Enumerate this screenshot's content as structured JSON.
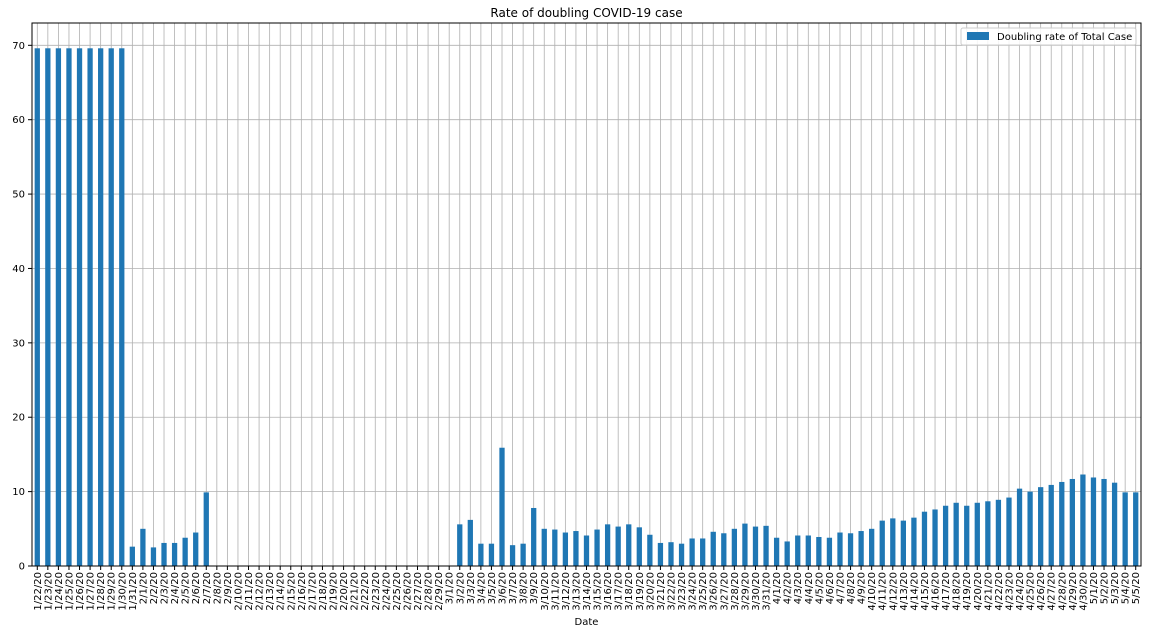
{
  "chart_data": {
    "type": "bar",
    "title": "Rate of doubling COVID-19 case",
    "xlabel": "Date",
    "ylabel": "",
    "ylim": [
      0,
      73
    ],
    "yticks": [
      0,
      10,
      20,
      30,
      40,
      50,
      60,
      70
    ],
    "grid": true,
    "legend_position": "top-right",
    "bar_color": "#1f77b4",
    "categories": [
      "1/22/20",
      "1/23/20",
      "1/24/20",
      "1/25/20",
      "1/26/20",
      "1/27/20",
      "1/28/20",
      "1/29/20",
      "1/30/20",
      "1/31/20",
      "2/1/20",
      "2/2/20",
      "2/3/20",
      "2/4/20",
      "2/5/20",
      "2/6/20",
      "2/7/20",
      "2/8/20",
      "2/9/20",
      "2/10/20",
      "2/11/20",
      "2/12/20",
      "2/13/20",
      "2/14/20",
      "2/15/20",
      "2/16/20",
      "2/17/20",
      "2/18/20",
      "2/19/20",
      "2/20/20",
      "2/21/20",
      "2/22/20",
      "2/23/20",
      "2/24/20",
      "2/25/20",
      "2/26/20",
      "2/27/20",
      "2/28/20",
      "2/29/20",
      "3/1/20",
      "3/2/20",
      "3/3/20",
      "3/4/20",
      "3/5/20",
      "3/6/20",
      "3/7/20",
      "3/8/20",
      "3/9/20",
      "3/10/20",
      "3/11/20",
      "3/12/20",
      "3/13/20",
      "3/14/20",
      "3/15/20",
      "3/16/20",
      "3/17/20",
      "3/18/20",
      "3/19/20",
      "3/20/20",
      "3/21/20",
      "3/22/20",
      "3/23/20",
      "3/24/20",
      "3/25/20",
      "3/26/20",
      "3/27/20",
      "3/28/20",
      "3/29/20",
      "3/30/20",
      "3/31/20",
      "4/1/20",
      "4/2/20",
      "4/3/20",
      "4/4/20",
      "4/5/20",
      "4/6/20",
      "4/7/20",
      "4/8/20",
      "4/9/20",
      "4/10/20",
      "4/11/20",
      "4/12/20",
      "4/13/20",
      "4/14/20",
      "4/15/20",
      "4/16/20",
      "4/17/20",
      "4/18/20",
      "4/19/20",
      "4/20/20",
      "4/21/20",
      "4/22/20",
      "4/23/20",
      "4/24/20",
      "4/25/20",
      "4/26/20",
      "4/27/20",
      "4/28/20",
      "4/29/20",
      "4/30/20",
      "5/1/20",
      "5/2/20",
      "5/3/20",
      "5/4/20",
      "5/5/20"
    ],
    "series": [
      {
        "name": "Doubling rate of Total Case",
        "values": [
          69.6,
          69.6,
          69.6,
          69.6,
          69.6,
          69.6,
          69.6,
          69.6,
          69.6,
          2.6,
          5.0,
          2.5,
          3.1,
          3.1,
          3.8,
          4.5,
          9.9,
          0,
          0,
          0,
          0,
          0,
          0,
          0,
          0,
          0,
          0,
          0,
          0,
          0,
          0,
          0,
          0,
          0,
          0,
          0,
          0,
          0,
          0,
          0,
          5.6,
          6.2,
          3.0,
          3.0,
          15.9,
          2.8,
          3.0,
          7.8,
          5.0,
          4.9,
          4.5,
          4.7,
          4.1,
          4.9,
          5.6,
          5.3,
          5.6,
          5.2,
          4.2,
          3.1,
          3.2,
          3.0,
          3.7,
          3.7,
          4.6,
          4.4,
          5.0,
          5.7,
          5.3,
          5.4,
          3.8,
          3.3,
          4.1,
          4.1,
          3.9,
          3.8,
          4.5,
          4.4,
          4.7,
          5.0,
          6.1,
          6.4,
          6.1,
          6.5,
          7.3,
          7.6,
          8.1,
          8.5,
          8.1,
          8.5,
          8.7,
          8.9,
          9.2,
          10.4,
          10.0,
          10.6,
          10.9,
          11.3,
          11.7,
          12.3,
          11.9,
          11.7,
          11.2,
          9.9,
          9.9
        ]
      }
    ]
  }
}
